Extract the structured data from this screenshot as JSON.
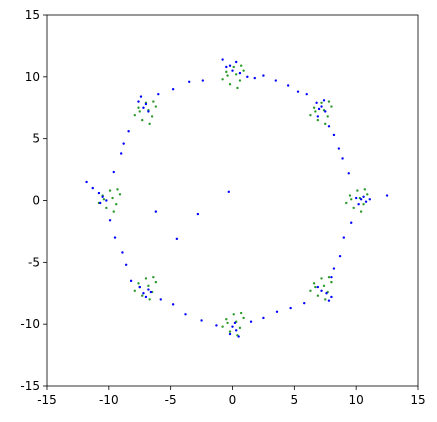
{
  "chart_data": {
    "type": "scatter",
    "xlim": [
      -15,
      15
    ],
    "ylim": [
      -15,
      15
    ],
    "xticks": [
      -15,
      -10,
      -5,
      0,
      5,
      10,
      15
    ],
    "yticks": [
      -15,
      -10,
      -5,
      0,
      5,
      10,
      15
    ],
    "series": [
      {
        "color": "#2a9a2a",
        "x": [
          0.3,
          -0.5,
          0.6,
          -0.2,
          0.9,
          -0.8,
          0.1,
          0.4,
          -0.4,
          0.7,
          7.4,
          6.6,
          7.7,
          6.9,
          8.0,
          6.3,
          7.2,
          7.5,
          6.7,
          7.8,
          10.3,
          9.5,
          10.6,
          9.8,
          10.9,
          9.2,
          10.1,
          10.4,
          9.6,
          10.7,
          7.4,
          6.6,
          7.7,
          6.9,
          8.0,
          6.3,
          7.2,
          7.5,
          6.7,
          7.8,
          0.3,
          -0.5,
          0.6,
          -0.2,
          0.9,
          -0.8,
          0.1,
          0.4,
          -0.4,
          0.7,
          -6.8,
          -7.6,
          -6.5,
          -7.3,
          -6.2,
          -7.9,
          -7.0,
          -6.7,
          -7.5,
          -6.4,
          -9.7,
          -10.5,
          -9.4,
          -10.2,
          -9.1,
          -10.8,
          -9.9,
          -9.6,
          -10.4,
          -9.3,
          -6.8,
          -7.6,
          -6.5,
          -7.3,
          -6.2,
          -7.9,
          -7.0,
          -6.7,
          -7.5,
          -6.4
        ],
        "y": [
          10.2,
          10.4,
          9.7,
          9.4,
          10.5,
          9.8,
          10.8,
          9.1,
          10.1,
          10.9,
          7.3,
          7.5,
          6.8,
          6.5,
          7.6,
          6.9,
          7.9,
          6.2,
          7.2,
          8.0,
          0.2,
          0.4,
          -0.3,
          -0.6,
          0.5,
          -0.2,
          0.8,
          -0.9,
          0.1,
          0.9,
          -6.9,
          -6.7,
          -7.4,
          -7.7,
          -6.6,
          -7.3,
          -6.3,
          -8.0,
          -7.0,
          -6.2,
          -9.8,
          -9.6,
          -10.3,
          -10.6,
          -9.5,
          -10.2,
          -9.2,
          -10.9,
          -9.9,
          -9.1,
          -6.9,
          -6.7,
          -7.4,
          -7.7,
          -6.6,
          -7.3,
          -6.3,
          -8.0,
          -7.0,
          -6.2,
          0.2,
          0.4,
          -0.3,
          -0.6,
          0.5,
          -0.2,
          0.8,
          -0.9,
          0.1,
          0.9,
          7.3,
          7.5,
          6.8,
          6.5,
          7.6,
          6.9,
          7.9,
          6.2,
          7.2,
          8.0
        ]
      },
      {
        "color": "#0000ff",
        "x": [
          -0.5,
          0,
          0.3,
          -0.8,
          0.6,
          -0.2,
          1.2,
          1.8,
          2.5,
          3.5,
          4.5,
          5.3,
          6.0,
          7.2,
          6.8,
          7.5,
          7.0,
          6.9,
          7.4,
          7.8,
          8.2,
          8.6,
          8.9,
          9.4,
          10.4,
          10.8,
          10.2,
          10.6,
          11.1,
          12.5,
          10.0,
          9.6,
          9.0,
          8.7,
          8.2,
          8.0,
          7.6,
          8.0,
          7.2,
          7.8,
          6.9,
          5.8,
          4.7,
          3.6,
          2.5,
          1.5,
          0.3,
          0,
          0.5,
          -0.2,
          0.2,
          -1.3,
          -2.5,
          -3.8,
          -4.8,
          -5.8,
          -7.2,
          -6.8,
          -7.5,
          -7.0,
          -6.6,
          -8.2,
          -8.6,
          -8.9,
          -9.5,
          -9.9,
          -10.5,
          -10.8,
          -11.3,
          -10.2,
          -11.8,
          -10.7,
          -9.6,
          -9.0,
          -8.8,
          -8.4,
          -7.2,
          -7.0,
          -7.6,
          -6.8,
          -7.4,
          -6.0,
          -4.8,
          -3.5,
          -2.4,
          -0.3,
          -2.8,
          -6.2,
          -4.5
        ],
        "y": [
          10.8,
          10.5,
          11.2,
          11.4,
          10.3,
          10.9,
          10.0,
          9.9,
          10.1,
          9.7,
          9.3,
          8.8,
          8.6,
          7.6,
          7.9,
          7.2,
          7.4,
          6.8,
          8.1,
          6.0,
          5.3,
          4.2,
          3.4,
          2.2,
          0.1,
          -0.1,
          -0.3,
          0.3,
          0.1,
          0.4,
          0.2,
          -1.8,
          -3.0,
          -4.5,
          -5.5,
          -6.2,
          -7.5,
          -7.8,
          -7.3,
          -8.1,
          -7.0,
          -8.3,
          -8.7,
          -9.0,
          -9.5,
          -9.8,
          -10.5,
          -10.2,
          -11.0,
          -10.8,
          -9.9,
          -10.1,
          -9.7,
          -9.2,
          -8.4,
          -8.0,
          -7.5,
          -7.2,
          -7.0,
          -7.8,
          -7.4,
          -6.5,
          -5.2,
          -4.2,
          -3.0,
          -1.6,
          0.3,
          0.6,
          1.0,
          0.0,
          1.5,
          -0.2,
          2.3,
          3.8,
          4.6,
          5.6,
          7.5,
          7.8,
          8.0,
          7.2,
          8.4,
          8.6,
          9.0,
          9.6,
          9.7,
          0.7,
          -1.1,
          -0.9,
          -3.1
        ]
      }
    ]
  }
}
